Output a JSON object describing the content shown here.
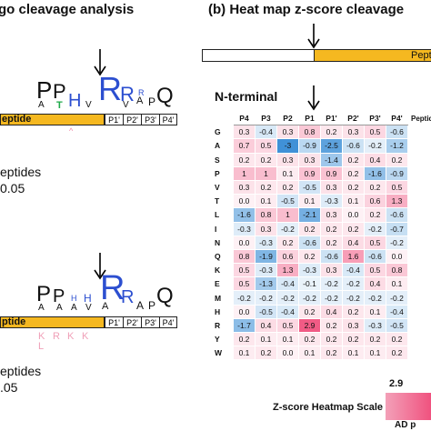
{
  "panel_a": {
    "title": "go cleavage analysis",
    "logo_top": {
      "bar_label": "eptide",
      "positions": [
        "P1'",
        "P2'",
        "P3'",
        "P4'"
      ],
      "pvalue_line1": "eptides",
      "pvalue_line2": "0.05"
    },
    "logo_bottom": {
      "bar_label": "ptide",
      "positions": [
        "P1'",
        "P2'",
        "P3'",
        "P4'"
      ],
      "pvalue_line1": "eptides",
      "pvalue_line2": ".05"
    }
  },
  "panel_b": {
    "title": "(b) Heat map z-score cleavage",
    "schematic_label": "Pept",
    "n_terminal_label": "N-terminal",
    "side_label": "Peptid",
    "columns": [
      "P4",
      "P3",
      "P2",
      "P1",
      "P1'",
      "P2'",
      "P3'",
      "P4'"
    ],
    "rows": [
      {
        "aa": "G",
        "values": [
          "0.3",
          "-0.4",
          "0.3",
          "0.8",
          "0.2",
          "0.3",
          "0.5",
          "-0.6"
        ]
      },
      {
        "aa": "A",
        "values": [
          "0.7",
          "0.5",
          "-3",
          "-0.9",
          "-2.5",
          "-0.6",
          "-0.2",
          "-1.2"
        ]
      },
      {
        "aa": "S",
        "values": [
          "0.2",
          "0.2",
          "0.3",
          "0.3",
          "-1.4",
          "0.2",
          "0.4",
          "0.2"
        ]
      },
      {
        "aa": "P",
        "values": [
          "1",
          "1",
          "0.1",
          "0.9",
          "0.9",
          "0.2",
          "-1.6",
          "-0.9"
        ]
      },
      {
        "aa": "V",
        "values": [
          "0.3",
          "0.2",
          "0.2",
          "-0.5",
          "0.3",
          "0.2",
          "0.2",
          "0.5"
        ]
      },
      {
        "aa": "T",
        "values": [
          "0.0",
          "0.1",
          "-0.5",
          "0.1",
          "-0.3",
          "0.1",
          "0.6",
          "1.3"
        ]
      },
      {
        "aa": "L",
        "values": [
          "-1.6",
          "0.8",
          "1",
          "-2.1",
          "0.3",
          "0.0",
          "0.2",
          "-0.6"
        ]
      },
      {
        "aa": "I",
        "values": [
          "-0.3",
          "0.3",
          "-0.2",
          "0.2",
          "0.2",
          "0.2",
          "-0.2",
          "-0.7"
        ]
      },
      {
        "aa": "N",
        "values": [
          "0.0",
          "-0.3",
          "0.2",
          "-0.6",
          "0.2",
          "0.4",
          "0.5",
          "-0.2"
        ]
      },
      {
        "aa": "Q",
        "values": [
          "0.8",
          "-1.9",
          "0.6",
          "0.2",
          "-0.6",
          "1.6",
          "-0.6",
          "0.0"
        ]
      },
      {
        "aa": "K",
        "values": [
          "0.5",
          "-0.3",
          "1.3",
          "-0.3",
          "0.3",
          "-0.4",
          "0.5",
          "0.8"
        ]
      },
      {
        "aa": "E",
        "values": [
          "0.5",
          "-1.3",
          "-0.4",
          "-0.1",
          "-0.2",
          "-0.2",
          "0.4",
          "0.1"
        ]
      },
      {
        "aa": "M",
        "values": [
          "-0.2",
          "-0.2",
          "-0.2",
          "-0.2",
          "-0.2",
          "-0.2",
          "-0.2",
          "-0.2"
        ]
      },
      {
        "aa": "H",
        "values": [
          "0.0",
          "-0.5",
          "-0.4",
          "0.2",
          "0.4",
          "0.2",
          "0.1",
          "-0.4"
        ]
      },
      {
        "aa": "R",
        "values": [
          "-1.7",
          "0.4",
          "0.5",
          "2.9",
          "0.2",
          "0.3",
          "-0.3",
          "-0.5"
        ]
      },
      {
        "aa": "Y",
        "values": [
          "0.2",
          "0.1",
          "0.1",
          "0.2",
          "0.2",
          "0.2",
          "0.2",
          "0.2"
        ]
      },
      {
        "aa": "W",
        "values": [
          "0.1",
          "0.2",
          "0.0",
          "0.1",
          "0.2",
          "0.1",
          "0.1",
          "0.2"
        ]
      }
    ],
    "scale": {
      "max_label": "2.9",
      "title": "Z-score Heatmap Scale",
      "cut_label": "AD p"
    },
    "colors": {
      "positive": "#f0527f",
      "negative": "#3c8fd6",
      "bar": "#f5b820"
    }
  }
}
